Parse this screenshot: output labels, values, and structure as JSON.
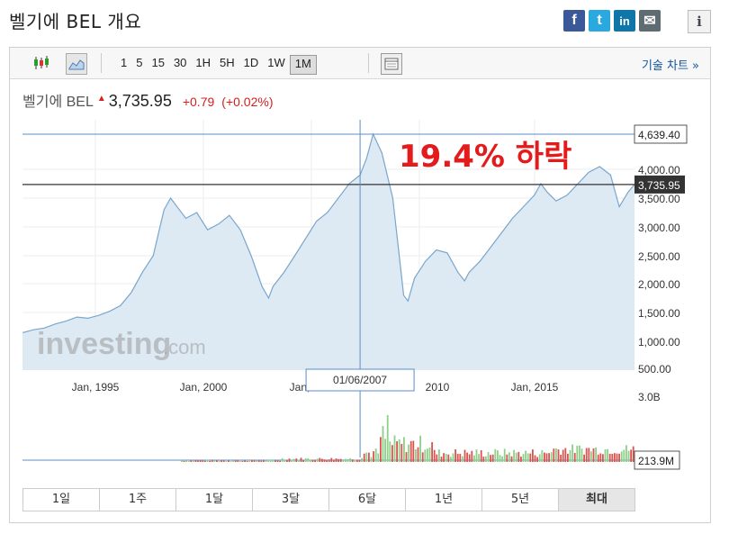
{
  "page": {
    "title": "벨기에 BEL 개요"
  },
  "share": {
    "facebook": "f",
    "twitter": "t",
    "linkedin": "in",
    "mail": "✉",
    "info": "i"
  },
  "toolbar": {
    "intervals": [
      "1",
      "5",
      "15",
      "30",
      "1H",
      "5H",
      "1D",
      "1W",
      "1M"
    ],
    "active_interval": "1M",
    "tech_chart_label": "기술 차트 »"
  },
  "quote": {
    "name": "벨기에 BEL",
    "price": "3,735.95",
    "change": "+0.79",
    "change_pct": "(+0.02%)"
  },
  "annotation": {
    "text": "19.4% 하락",
    "color": "#e31b1b"
  },
  "colors": {
    "area_fill": "#dde9f3",
    "line": "#7aa6cc",
    "up_bar": "#8fcf8a",
    "down_bar": "#d9534f",
    "crosshair": "#5b8fc7"
  },
  "crosshair_label": "01/06/2007",
  "watermark": {
    "text": "investing",
    "suffix": ".com"
  },
  "chart_data": {
    "type": "area",
    "x_tick_labels": [
      "Jan, 1995",
      "Jan, 2000",
      "Jan,",
      "2010",
      "Jan, 2015"
    ],
    "y_tick_labels": [
      "4,000.00",
      "3,500.00",
      "3,000.00",
      "2,500.00",
      "2,000.00",
      "1,500.00",
      "1,000.00",
      "500.00"
    ],
    "ylim": [
      500,
      4700
    ],
    "marked_levels": [
      {
        "label": "4,639.40",
        "value": 4639.4
      },
      {
        "label": "3,735.95",
        "value": 3735.95
      }
    ],
    "series": [
      {
        "values_year": [
          1991.5,
          1992,
          1992.5,
          1993,
          1993.5,
          1994,
          1994.5,
          1995,
          1995.5,
          1996,
          1996.5,
          1997,
          1997.5,
          1998,
          1998.3,
          1998.7,
          1999,
          1999.5,
          2000,
          2000.5,
          2001,
          2001.5,
          2002,
          2002.5,
          2002.8,
          2003,
          2003.5,
          2004,
          2004.5,
          2005,
          2005.5,
          2006,
          2006.5,
          2007,
          2007.3,
          2007.6,
          2008,
          2008.5,
          2008.8,
          2009,
          2009.2,
          2009.5,
          2010,
          2010.5,
          2011,
          2011.5,
          2011.8,
          2012,
          2012.5,
          2013,
          2013.5,
          2014,
          2014.5,
          2015,
          2015.3,
          2015.6,
          2016,
          2016.5,
          2017,
          2017.5,
          2018,
          2018.5,
          2018.9,
          2019.3,
          2019.6
        ],
        "values": [
          1150,
          1200,
          1230,
          1300,
          1350,
          1420,
          1400,
          1450,
          1520,
          1620,
          1850,
          2200,
          2500,
          3300,
          3500,
          3300,
          3150,
          3250,
          2950,
          3050,
          3200,
          2950,
          2500,
          1950,
          1750,
          1950,
          2200,
          2500,
          2800,
          3100,
          3250,
          3500,
          3750,
          3900,
          4200,
          4639,
          4300,
          3500,
          2500,
          1800,
          1700,
          2100,
          2400,
          2600,
          2550,
          2200,
          2050,
          2200,
          2400,
          2650,
          2900,
          3150,
          3350,
          3550,
          3750,
          3600,
          3450,
          3550,
          3750,
          3950,
          4050,
          3900,
          3350,
          3600,
          3736
        ]
      }
    ],
    "volume": {
      "axis_labels": [
        "3.0B",
        "213.9M"
      ],
      "peak_year": 2007.0
    }
  },
  "range_buttons": [
    "1일",
    "1주",
    "1달",
    "3달",
    "6달",
    "1년",
    "5년",
    "최대"
  ],
  "active_range": "최대"
}
